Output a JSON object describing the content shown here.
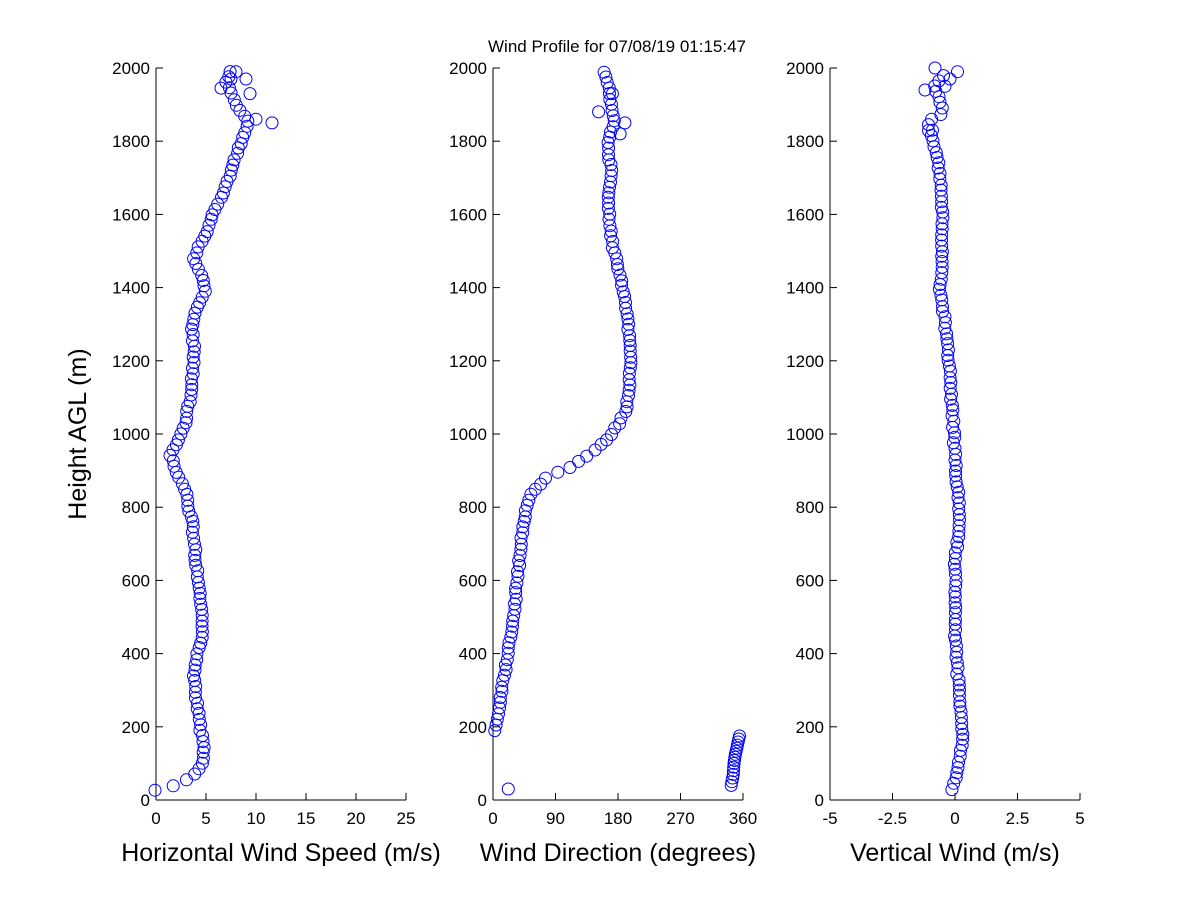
{
  "title": "Wind Profile for  07/08/19 01:15:47",
  "colors": {
    "marker": "#0000ff",
    "axis": "#000000",
    "background": "#ffffff"
  },
  "chart_data": [
    {
      "id": "speed",
      "type": "scatter",
      "xlabel": "Horizontal Wind Speed (m/s)",
      "ylabel": "Height AGL (m)",
      "xlim": [
        0,
        25
      ],
      "ylim": [
        0,
        2000
      ],
      "xticks": [
        "0",
        "5",
        "10",
        "15",
        "20",
        "25"
      ],
      "yticks": [
        "0",
        "200",
        "400",
        "600",
        "800",
        "1000",
        "1200",
        "1400",
        "1600",
        "1800",
        "2000"
      ],
      "profile": [
        [
          0.0,
          25
        ],
        [
          1.3,
          35
        ],
        [
          2.7,
          50
        ],
        [
          3.9,
          70
        ],
        [
          4.6,
          100
        ],
        [
          4.8,
          140
        ],
        [
          4.4,
          200
        ],
        [
          4.1,
          260
        ],
        [
          3.8,
          330
        ],
        [
          4.0,
          390
        ],
        [
          4.7,
          450
        ],
        [
          4.5,
          520
        ],
        [
          4.2,
          600
        ],
        [
          3.9,
          680
        ],
        [
          3.6,
          760
        ],
        [
          3.0,
          840
        ],
        [
          2.3,
          880
        ],
        [
          1.5,
          940
        ],
        [
          2.2,
          980
        ],
        [
          2.9,
          1020
        ],
        [
          3.4,
          1100
        ],
        [
          3.7,
          1180
        ],
        [
          3.8,
          1240
        ],
        [
          3.5,
          1290
        ],
        [
          4.0,
          1340
        ],
        [
          4.9,
          1390
        ],
        [
          4.6,
          1430
        ],
        [
          3.8,
          1480
        ],
        [
          4.8,
          1540
        ],
        [
          5.7,
          1600
        ],
        [
          6.8,
          1660
        ],
        [
          7.5,
          1720
        ],
        [
          8.3,
          1780
        ],
        [
          9.3,
          1850
        ],
        [
          8.5,
          1880
        ],
        [
          7.0,
          1960
        ],
        [
          7.5,
          2000
        ]
      ],
      "outliers": [
        [
          11.6,
          1850
        ],
        [
          10.0,
          1860
        ],
        [
          9.4,
          1930
        ],
        [
          9.0,
          1970
        ],
        [
          8.0,
          1990
        ],
        [
          6.5,
          1945
        ],
        [
          7.5,
          1970
        ]
      ]
    },
    {
      "id": "direction",
      "type": "scatter",
      "xlabel": "Wind Direction (degrees)",
      "xlim": [
        0,
        360
      ],
      "ylim": [
        0,
        2000
      ],
      "xticks": [
        "0",
        "90",
        "180",
        "270",
        "360"
      ],
      "yticks": [
        "0",
        "200",
        "400",
        "600",
        "800",
        "1000",
        "1200",
        "1400",
        "1600",
        "1800",
        "2000"
      ],
      "profile": [
        [
          3,
          190
        ],
        [
          8,
          240
        ],
        [
          12,
          300
        ],
        [
          18,
          360
        ],
        [
          22,
          420
        ],
        [
          28,
          480
        ],
        [
          33,
          560
        ],
        [
          37,
          640
        ],
        [
          42,
          740
        ],
        [
          48,
          790
        ],
        [
          55,
          840
        ],
        [
          75,
          880
        ],
        [
          110,
          910
        ],
        [
          150,
          960
        ],
        [
          175,
          1010
        ],
        [
          190,
          1060
        ],
        [
          197,
          1120
        ],
        [
          198,
          1200
        ],
        [
          195,
          1300
        ],
        [
          190,
          1380
        ],
        [
          180,
          1450
        ],
        [
          170,
          1540
        ],
        [
          165,
          1640
        ],
        [
          170,
          1720
        ],
        [
          165,
          1800
        ],
        [
          175,
          1850
        ],
        [
          170,
          1900
        ],
        [
          165,
          1960
        ],
        [
          158,
          2000
        ]
      ],
      "cluster": [
        [
          343,
          40
        ],
        [
          346,
          70
        ],
        [
          347,
          100
        ],
        [
          349,
          125
        ],
        [
          352,
          150
        ],
        [
          355,
          175
        ]
      ],
      "outliers": [
        [
          22,
          30
        ],
        [
          152,
          1880
        ],
        [
          190,
          1850
        ],
        [
          183,
          1820
        ],
        [
          172,
          1930
        ]
      ]
    },
    {
      "id": "vertical",
      "type": "scatter",
      "xlabel": "Vertical Wind (m/s)",
      "xlim": [
        -5,
        5
      ],
      "ylim": [
        0,
        2000
      ],
      "xticks": [
        "-5",
        "-2.5",
        "0",
        "2.5",
        "5"
      ],
      "yticks": [
        "0",
        "200",
        "400",
        "600",
        "800",
        "1000",
        "1200",
        "1400",
        "1600",
        "1800",
        "2000"
      ],
      "profile": [
        [
          -0.1,
          30
        ],
        [
          0.1,
          80
        ],
        [
          0.35,
          170
        ],
        [
          0.2,
          250
        ],
        [
          0.1,
          350
        ],
        [
          0.0,
          450
        ],
        [
          0.0,
          550
        ],
        [
          0.0,
          650
        ],
        [
          0.2,
          750
        ],
        [
          0.1,
          850
        ],
        [
          0.0,
          950
        ],
        [
          -0.1,
          1050
        ],
        [
          -0.2,
          1150
        ],
        [
          -0.3,
          1250
        ],
        [
          -0.5,
          1350
        ],
        [
          -0.6,
          1400
        ],
        [
          -0.5,
          1500
        ],
        [
          -0.5,
          1600
        ],
        [
          -0.6,
          1700
        ],
        [
          -0.7,
          1750
        ],
        [
          -0.9,
          1800
        ],
        [
          -1.1,
          1850
        ],
        [
          -0.5,
          1880
        ],
        [
          -0.8,
          1950
        ],
        [
          -0.3,
          1990
        ]
      ],
      "outliers": [
        [
          -1.2,
          1940
        ],
        [
          -0.8,
          2000
        ],
        [
          -0.2,
          1970
        ],
        [
          0.1,
          1990
        ],
        [
          -0.4,
          1950
        ],
        [
          -0.9,
          1830
        ]
      ]
    }
  ]
}
